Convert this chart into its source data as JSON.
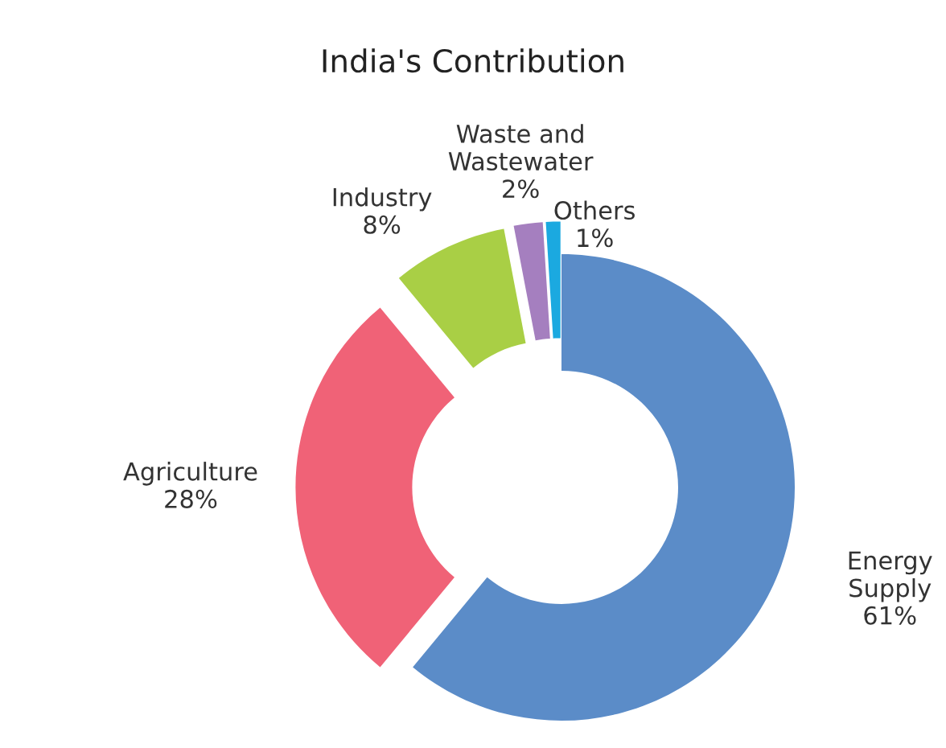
{
  "chart_data": {
    "type": "donut",
    "title": "India's Contribution",
    "categories": [
      "Energy Supply",
      "Agriculture",
      "Industry",
      "Waste and Wastewater",
      "Others"
    ],
    "values": [
      61,
      28,
      8,
      2,
      1
    ],
    "colors": [
      "#5b8cc8",
      "#f06277",
      "#a9cf45",
      "#a57fbf",
      "#1ba9e0"
    ],
    "value_labels": [
      "61%",
      "28%",
      "8%",
      "2%",
      "1%"
    ]
  }
}
